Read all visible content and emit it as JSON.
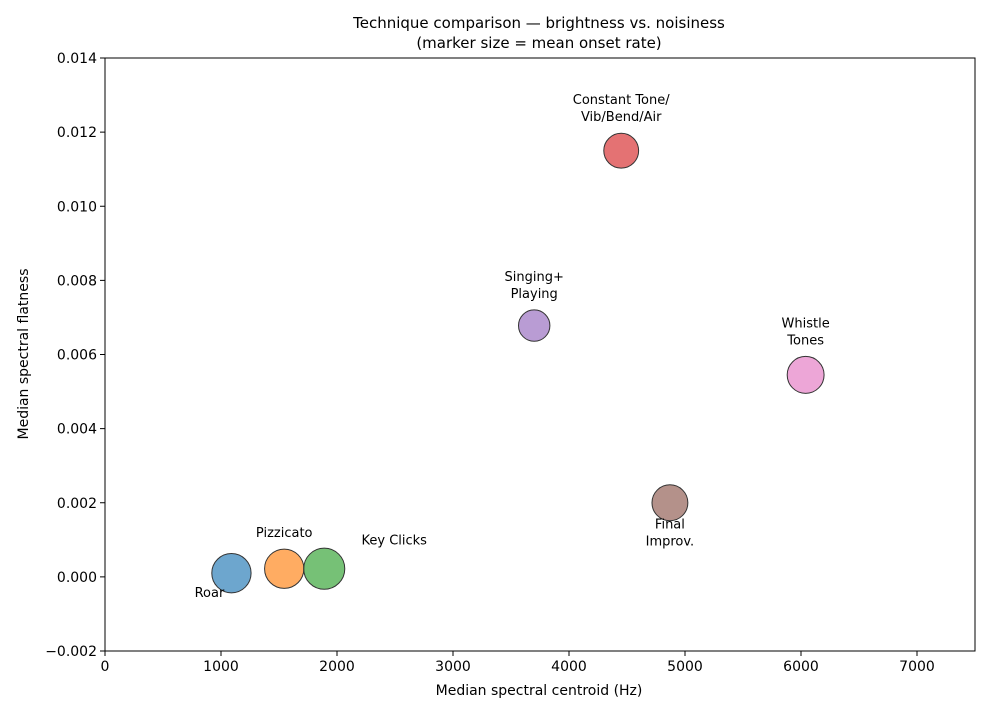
{
  "chart_data": {
    "type": "scatter",
    "title": "Technique comparison — brightness vs. noisiness",
    "subtitle": "(marker size = mean onset rate)",
    "xlabel": "Median spectral centroid (Hz)",
    "ylabel": "Median spectral flatness",
    "xlim": [
      0,
      7500
    ],
    "ylim": [
      -0.002,
      0.014
    ],
    "xticks": [
      0,
      1000,
      2000,
      3000,
      4000,
      5000,
      6000,
      7000
    ],
    "xtick_labels": [
      "0",
      "1000",
      "2000",
      "3000",
      "4000",
      "5000",
      "6000",
      "7000"
    ],
    "yticks": [
      -0.002,
      0.0,
      0.002,
      0.004,
      0.006,
      0.008,
      0.01,
      0.012,
      0.014
    ],
    "ytick_labels": [
      "−0.002",
      "0.000",
      "0.002",
      "0.004",
      "0.006",
      "0.008",
      "0.010",
      "0.012",
      "0.014"
    ],
    "grid": false,
    "points": [
      {
        "label": "Roar",
        "x": 1090,
        "y": 0.0001,
        "size": 1.7,
        "color": "#1f77b4",
        "label_lines": [
          "Roar"
        ],
        "label_pos": "below-left"
      },
      {
        "label": "Pizzicato",
        "x": 1545,
        "y": 0.00022,
        "size": 1.7,
        "color": "#ff7f0e",
        "label_lines": [
          "Pizzicato"
        ],
        "label_pos": "above"
      },
      {
        "label": "Key Clicks",
        "x": 1890,
        "y": 0.00022,
        "size": 1.9,
        "color": "#2ca02c",
        "label_lines": [
          "Key Clicks"
        ],
        "label_pos": "above-right"
      },
      {
        "label": "Constant Tone/Vib/Bend/Air",
        "x": 4450,
        "y": 0.0115,
        "size": 1.25,
        "color": "#d62728",
        "label_lines": [
          "Constant Tone/",
          "Vib/Bend/Air"
        ],
        "label_pos": "above"
      },
      {
        "label": "Singing+Playing",
        "x": 3700,
        "y": 0.00678,
        "size": 0.95,
        "color": "#9467bd",
        "label_lines": [
          "Singing+",
          "Playing"
        ],
        "label_pos": "above"
      },
      {
        "label": "Final Improv.",
        "x": 4870,
        "y": 0.002,
        "size": 1.35,
        "color": "#8c564b",
        "label_lines": [
          "Final",
          "Improv."
        ],
        "label_pos": "below"
      },
      {
        "label": "Whistle Tones",
        "x": 6040,
        "y": 0.00545,
        "size": 1.45,
        "color": "#e377c2",
        "label_lines": [
          "Whistle",
          "Tones"
        ],
        "label_pos": "above"
      }
    ]
  }
}
